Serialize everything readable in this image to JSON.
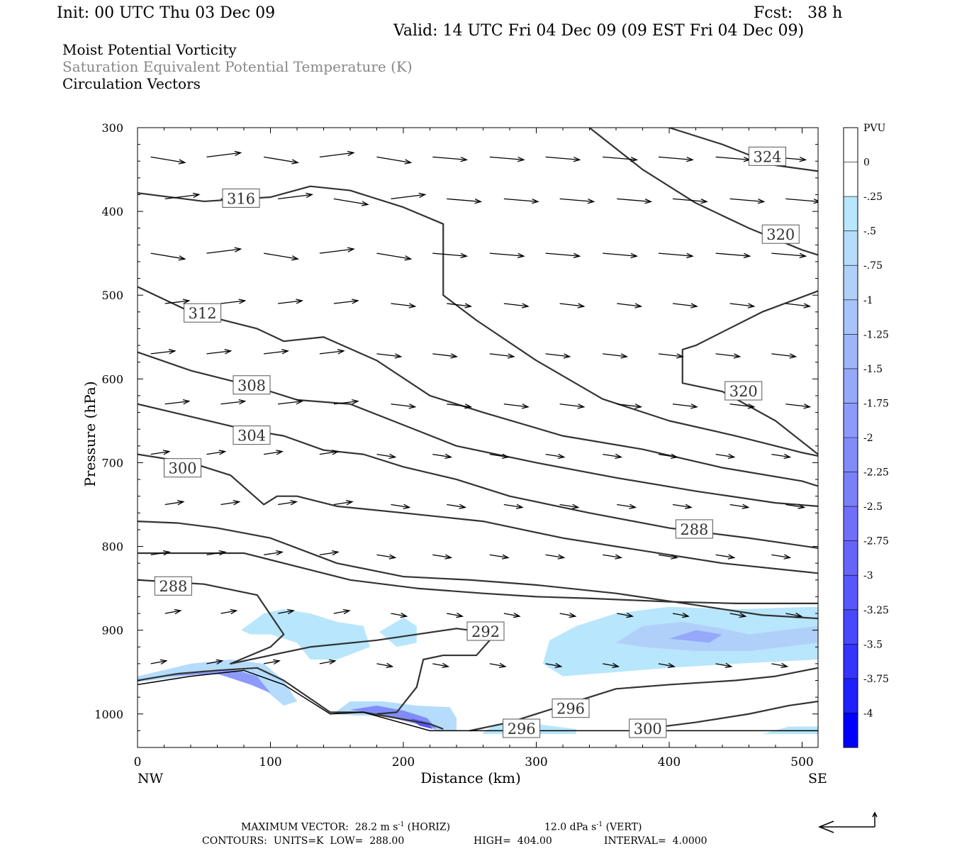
{
  "header": {
    "init": "Init: 00 UTC Thu 03 Dec 09",
    "fcst": "Fcst:   38 h",
    "valid": "Valid: 14 UTC Fri 04 Dec 09 (09 EST Fri 04 Dec 09)",
    "title_pv": "Moist Potential Vorticity",
    "title_theta": "Saturation Equivalent Potential Temperature (K)",
    "title_vectors": "Circulation Vectors"
  },
  "chart_data": {
    "type": "cross-section",
    "xlabel": "Distance (km)",
    "ylabel": "Pressure (hPa)",
    "xlim": [
      0,
      512
    ],
    "ylim": [
      1040,
      300
    ],
    "y_scale": "linear (pressure decreasing upward)",
    "x_ticks": [
      0,
      100,
      200,
      300,
      400,
      500
    ],
    "y_ticks": [
      300,
      400,
      500,
      600,
      700,
      800,
      900,
      1000
    ],
    "x_end_labels": {
      "left": "NW",
      "right": "SE"
    },
    "colorbar": {
      "title": "PVU",
      "labels": [
        "0",
        "-.25",
        "-.5",
        "-.75",
        "-1",
        "-1.25",
        "-1.5",
        "-1.75",
        "-2",
        "-2.25",
        "-2.5",
        "-2.75",
        "-3",
        "-3.25",
        "-3.5",
        "-3.75",
        "-4"
      ],
      "colors": [
        "#ffffff",
        "#ffffff",
        "#b8e6fc",
        "#b5dcfb",
        "#b0d0fa",
        "#a7c3fa",
        "#9eb5fa",
        "#95a8fa",
        "#8c9bfa",
        "#818cfa",
        "#7a80fa",
        "#6f70fa",
        "#6565fa",
        "#5757fb",
        "#4848fc",
        "#3434fd",
        "#2020fe",
        "#0000ff"
      ]
    },
    "theta_contours": [
      {
        "label": "288",
        "points": [
          [
            0,
            808
          ],
          [
            40,
            808
          ],
          [
            80,
            808
          ],
          [
            110,
            820
          ],
          [
            160,
            840
          ],
          [
            210,
            850
          ],
          [
            260,
            856
          ],
          [
            300,
            860
          ],
          [
            340,
            862
          ],
          [
            400,
            866
          ],
          [
            450,
            868
          ],
          [
            512,
            868
          ]
        ]
      },
      {
        "label": "292",
        "points": [
          [
            0,
            840
          ],
          [
            50,
            845
          ],
          [
            90,
            858
          ],
          [
            110,
            905
          ],
          [
            100,
            920
          ],
          [
            70,
            940
          ],
          [
            130,
            920
          ],
          [
            180,
            912
          ],
          [
            210,
            905
          ],
          [
            240,
            898
          ],
          [
            250,
            900
          ],
          [
            265,
            912
          ],
          [
            255,
            930
          ],
          [
            230,
            930
          ],
          [
            215,
            935
          ],
          [
            210,
            968
          ],
          [
            195,
            998
          ],
          [
            180,
            1000
          ]
        ]
      },
      {
        "label": "296",
        "points": [
          [
            250,
            1020
          ],
          [
            280,
            1010
          ],
          [
            320,
            990
          ],
          [
            360,
            970
          ],
          [
            400,
            965
          ],
          [
            450,
            960
          ],
          [
            480,
            955
          ],
          [
            512,
            945
          ]
        ]
      },
      {
        "label": "296",
        "points": [
          [
            0,
            960
          ],
          [
            30,
            952
          ],
          [
            60,
            948
          ],
          [
            90,
            945
          ],
          [
            110,
            960
          ],
          [
            145,
            998
          ],
          [
            170,
            998
          ],
          [
            220,
            1012
          ],
          [
            230,
            1018
          ]
        ]
      },
      {
        "label": "300",
        "points": [
          [
            370,
            1020
          ],
          [
            420,
            1010
          ],
          [
            460,
            1000
          ],
          [
            490,
            990
          ],
          [
            512,
            985
          ]
        ]
      },
      {
        "label": "288",
        "points": [
          [
            0,
            770
          ],
          [
            30,
            772
          ],
          [
            60,
            778
          ],
          [
            100,
            790
          ],
          [
            150,
            820
          ],
          [
            200,
            836
          ],
          [
            250,
            840
          ],
          [
            300,
            846
          ],
          [
            360,
            856
          ],
          [
            420,
            870
          ],
          [
            470,
            882
          ],
          [
            512,
            886
          ]
        ]
      },
      {
        "label": "300",
        "points": [
          [
            0,
            690
          ],
          [
            40,
            700
          ],
          [
            70,
            715
          ],
          [
            95,
            750
          ],
          [
            105,
            740
          ],
          [
            120,
            740
          ],
          [
            150,
            752
          ],
          [
            200,
            760
          ],
          [
            260,
            770
          ],
          [
            320,
            790
          ],
          [
            380,
            805
          ],
          [
            440,
            820
          ],
          [
            512,
            832
          ]
        ]
      },
      {
        "label": "304",
        "points": [
          [
            0,
            630
          ],
          [
            40,
            645
          ],
          [
            80,
            660
          ],
          [
            110,
            668
          ],
          [
            140,
            685
          ],
          [
            170,
            690
          ],
          [
            200,
            705
          ],
          [
            240,
            720
          ],
          [
            280,
            740
          ],
          [
            340,
            760
          ],
          [
            400,
            778
          ],
          [
            460,
            790
          ],
          [
            512,
            802
          ]
        ]
      },
      {
        "label": "308",
        "points": [
          [
            0,
            568
          ],
          [
            40,
            590
          ],
          [
            90,
            610
          ],
          [
            120,
            625
          ],
          [
            160,
            630
          ],
          [
            200,
            655
          ],
          [
            240,
            680
          ],
          [
            300,
            700
          ],
          [
            360,
            718
          ],
          [
            420,
            734
          ],
          [
            480,
            748
          ],
          [
            512,
            752
          ]
        ]
      },
      {
        "label": "312",
        "points": [
          [
            0,
            490
          ],
          [
            40,
            520
          ],
          [
            90,
            540
          ],
          [
            110,
            555
          ],
          [
            140,
            550
          ],
          [
            180,
            578
          ],
          [
            220,
            620
          ],
          [
            260,
            640
          ],
          [
            320,
            668
          ],
          [
            380,
            684
          ],
          [
            440,
            706
          ],
          [
            500,
            722
          ],
          [
            512,
            728
          ]
        ]
      },
      {
        "label": "316",
        "points": [
          [
            0,
            378
          ],
          [
            50,
            388
          ],
          [
            100,
            383
          ],
          [
            130,
            370
          ],
          [
            160,
            375
          ],
          [
            200,
            395
          ],
          [
            230,
            415
          ],
          [
            230,
            500
          ],
          [
            255,
            530
          ],
          [
            300,
            578
          ],
          [
            350,
            624
          ],
          [
            400,
            650
          ],
          [
            450,
            668
          ],
          [
            500,
            688
          ],
          [
            512,
            692
          ]
        ]
      },
      {
        "label": "320",
        "points": [
          [
            512,
            495
          ],
          [
            470,
            520
          ],
          [
            420,
            560
          ],
          [
            410,
            565
          ],
          [
            410,
            605
          ],
          [
            440,
            615
          ],
          [
            480,
            650
          ],
          [
            512,
            690
          ]
        ]
      },
      {
        "label": "320",
        "points": [
          [
            340,
            300
          ],
          [
            380,
            350
          ],
          [
            420,
            390
          ],
          [
            460,
            420
          ],
          [
            500,
            446
          ],
          [
            512,
            452
          ]
        ]
      },
      {
        "label": "324",
        "points": [
          [
            400,
            300
          ],
          [
            440,
            320
          ],
          [
            480,
            345
          ],
          [
            512,
            352
          ]
        ]
      }
    ],
    "vector_scale": {
      "max_horiz": "28.2 m s",
      "max_vert": "12.0 dPa s",
      "exp": "-1",
      "horiz_unit_note": "(HORIZ)",
      "vert_unit_note": "(VERT)"
    },
    "pv_fill_note": "shaded regions of negative moist PV below 850 hPa"
  },
  "footer": {
    "max_vector_label": "MAXIMUM VECTOR:",
    "max_vector_h": "28.2 m s",
    "max_vector_h_tail": "(HORIZ)",
    "max_vector_v": "12.0 dPa s",
    "max_vector_v_tail": "(VERT)",
    "contours_label": "CONTOURS:",
    "units": "UNITS=K",
    "low": "LOW=",
    "low_val": "288.00",
    "high": "HIGH=",
    "high_val": "404.00",
    "interval": "INTERVAL=",
    "interval_val": "4.0000"
  }
}
